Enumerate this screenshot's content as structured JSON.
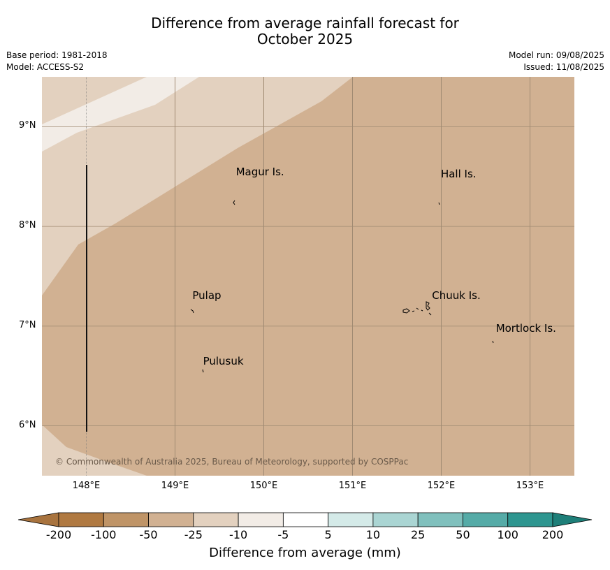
{
  "title_line1": "Difference from average rainfall forecast for",
  "title_line2": "October 2025",
  "meta_left": {
    "base_period": "Base period: 1981-2018",
    "model": "Model: ACCESS-S2"
  },
  "meta_right": {
    "model_run": "Model run: 09/08/2025",
    "issued": "Issued: 11/08/2025"
  },
  "map": {
    "extent": {
      "lon_min": 147.5,
      "lon_max": 153.5,
      "lat_min": 5.5,
      "lat_max": 9.5
    },
    "lat_ticks": [
      {
        "value": 9,
        "label": "9°N"
      },
      {
        "value": 8,
        "label": "8°N"
      },
      {
        "value": 7,
        "label": "7°N"
      },
      {
        "value": 6,
        "label": "6°N"
      }
    ],
    "lon_ticks": [
      {
        "value": 148,
        "label": "148°E"
      },
      {
        "value": 149,
        "label": "149°E"
      },
      {
        "value": 150,
        "label": "150°E"
      },
      {
        "value": 151,
        "label": "151°E"
      },
      {
        "value": 152,
        "label": "152°E"
      },
      {
        "value": 153,
        "label": "153°E"
      }
    ],
    "places": [
      {
        "name": "Magur Is.",
        "lon": 149.67,
        "lat": 8.57
      },
      {
        "name": "Hall Is.",
        "lon": 151.98,
        "lat": 8.55
      },
      {
        "name": "Pulap",
        "lon": 149.18,
        "lat": 7.33
      },
      {
        "name": "Chuuk Is.",
        "lon": 151.88,
        "lat": 7.33
      },
      {
        "name": "Mortlock Is.",
        "lon": 152.6,
        "lat": 7.0
      },
      {
        "name": "Pulusuk",
        "lon": 149.3,
        "lat": 6.67
      }
    ],
    "copyright": "© Commonwealth of Australia 2025, Bureau of Meteorology, supported by COSPPac"
  },
  "colorbar": {
    "title": "Difference from average (mm)",
    "labels": [
      "-200",
      "-100",
      "-50",
      "-25",
      "-10",
      "-5",
      "5",
      "10",
      "25",
      "50",
      "100",
      "200"
    ],
    "colors": [
      "#a8733e",
      "#b07941",
      "#bf9467",
      "#d1b192",
      "#e3d1bf",
      "#f2ece6",
      "#ffffff",
      "#d4eae8",
      "#aad5d3",
      "#80c0bd",
      "#55aba7",
      "#2e9690",
      "#1e7f79"
    ]
  }
}
